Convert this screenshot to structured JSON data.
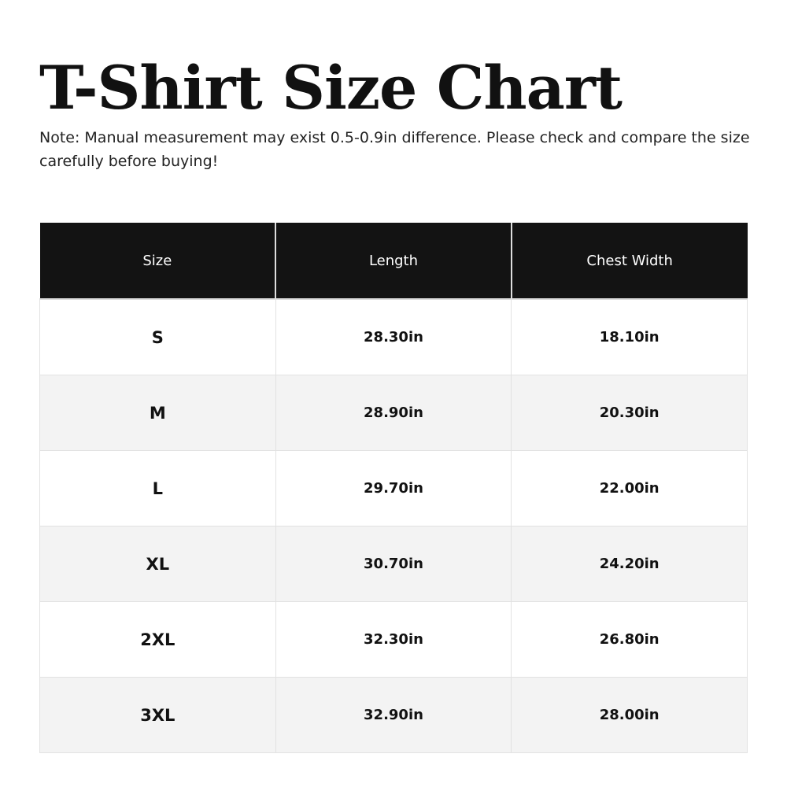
{
  "title": "T-Shirt Size Chart",
  "note": "Note: Manual measurement may exist 0.5-0.9in difference. Please check and compare the size carefully before buying!",
  "table": {
    "headers": [
      "Size",
      "Length",
      "Chest Width"
    ],
    "rows": [
      [
        "S",
        "28.30in",
        "18.10in"
      ],
      [
        "M",
        "28.90in",
        "20.30in"
      ],
      [
        "L",
        "29.70in",
        "22.00in"
      ],
      [
        "XL",
        "30.70in",
        "24.20in"
      ],
      [
        "2XL",
        "32.30in",
        "26.80in"
      ],
      [
        "3XL",
        "32.90in",
        "28.00in"
      ]
    ]
  }
}
